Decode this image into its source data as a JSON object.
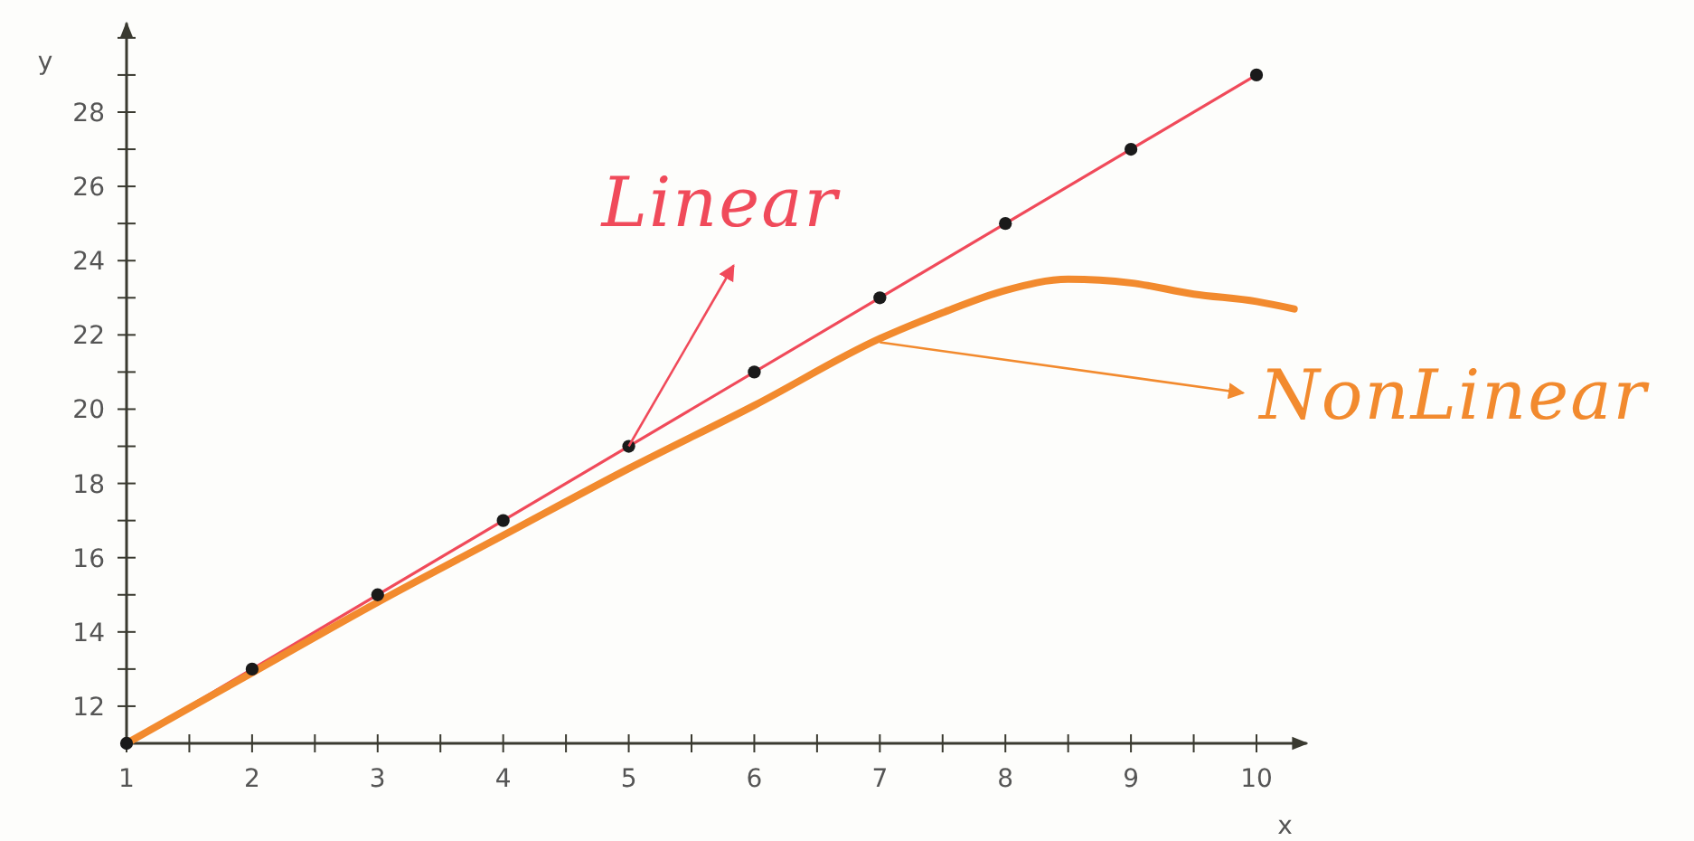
{
  "chart_data": {
    "type": "line",
    "xlabel": "x",
    "ylabel": "y",
    "xlim": [
      1,
      10.4
    ],
    "ylim": [
      11,
      30.4
    ],
    "xticks": [
      1,
      {
        "value": 1.5,
        "label": null
      },
      2,
      {
        "value": 2.5,
        "label": null
      },
      3,
      {
        "value": 3.5,
        "label": null
      },
      4,
      {
        "value": 4.5,
        "label": null
      },
      5,
      {
        "value": 5.5,
        "label": null
      },
      6,
      {
        "value": 6.5,
        "label": null
      },
      7,
      {
        "value": 7.5,
        "label": null
      },
      8,
      {
        "value": 8.5,
        "label": null
      },
      9,
      {
        "value": 9.5,
        "label": null
      },
      10
    ],
    "yticks": [
      12,
      {
        "value": 13,
        "label": null
      },
      14,
      {
        "value": 15,
        "label": null
      },
      16,
      {
        "value": 17,
        "label": null
      },
      18,
      {
        "value": 19,
        "label": null
      },
      20,
      {
        "value": 21,
        "label": null
      },
      22,
      {
        "value": 23,
        "label": null
      },
      24,
      {
        "value": 25,
        "label": null
      },
      26,
      {
        "value": 27,
        "label": null
      },
      28,
      {
        "value": 29,
        "label": null
      },
      {
        "value": 30,
        "label": null
      }
    ],
    "grid": false,
    "series": [
      {
        "type": "scatter",
        "marker": "circle",
        "color": "#1a1a1a",
        "x": [
          1,
          2,
          3,
          4,
          5,
          6,
          7,
          8,
          9,
          10
        ],
        "values": [
          11,
          13,
          15,
          17,
          19,
          21,
          23,
          25,
          27,
          29
        ]
      },
      {
        "marker": "none",
        "color": "#f04a5a",
        "x": [
          1,
          10
        ],
        "values": [
          11,
          29
        ]
      },
      {
        "marker": "none",
        "color": "#f28a2e",
        "x": [
          1,
          2,
          3,
          4,
          5,
          6,
          7,
          7.5,
          8,
          8.5,
          9,
          9.5,
          10,
          10.3
        ],
        "values": [
          11,
          12.9,
          14.8,
          16.6,
          18.4,
          20.1,
          21.9,
          22.6,
          23.2,
          23.5,
          23.4,
          23.1,
          22.9,
          22.7
        ]
      }
    ],
    "annotations": [
      {
        "text": "Linear",
        "x": 5,
        "y": 19
      },
      {
        "text": "NonLinear",
        "x": 7,
        "y": 21.8
      }
    ]
  }
}
